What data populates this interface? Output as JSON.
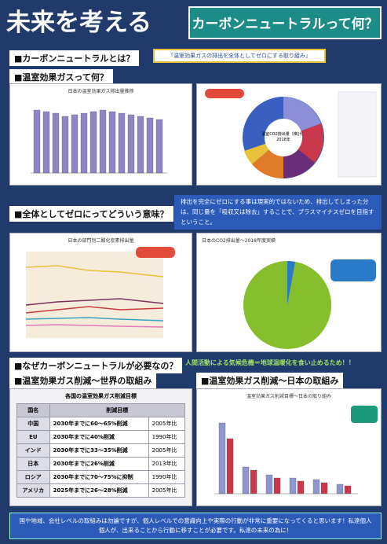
{
  "header": {
    "title_left": "未来を考える",
    "title_right": "カーボンニュートラルって何？"
  },
  "what_is": {
    "heading": "■カーボンニュートラルとは？",
    "answer": "「温室効果ガスの排出を全体としてゼロにする取り組み」"
  },
  "ghg": {
    "heading": "■温室効果ガスって何？",
    "chart_left_title": "日本の温室効果ガス排出量推移",
    "chart_right_title": "温室CO2排出量（推計） 2018年"
  },
  "net_zero": {
    "heading": "■全体としてゼロにってどういう意味？",
    "explanation": "排出を完全にゼロにする事は現実的ではないため、排出してしまった分は、同じ量を「吸収又は除去」することで、プラスマイナスゼロを目指すということ。",
    "chart_left_title": "日本の部門別二酸化炭素排出量",
    "chart_right_title": "日本のCO2排出量～2018年度実績"
  },
  "why": {
    "heading": "■なぜカーボンニュートラルが必要なの？",
    "answer": "人間活動による気候危機＝地球温暖化を食い止めるため！！"
  },
  "world": {
    "heading": "■温室効果ガス削減～世界の取組み",
    "table": {
      "title": "各国の温室効果ガス削減目標",
      "header": [
        "国名",
        "削減目標"
      ],
      "rows": [
        [
          "中国",
          "2030年までに60～65%削減",
          "2005年比"
        ],
        [
          "EU",
          "2030年までに40%削減",
          "1990年比"
        ],
        [
          "インド",
          "2030年までに33～35%削減",
          "2005年比"
        ],
        [
          "日本",
          "2030年までに26%削減",
          "2013年比"
        ],
        [
          "ロシア",
          "2030年までに70～75%に抑制",
          "1990年比"
        ],
        [
          "アメリカ",
          "2025年までに26～28%削減",
          "2005年比"
        ]
      ]
    }
  },
  "japan": {
    "heading": "■温室効果ガス削減～日本の取組み",
    "chart_title": "温室効果ガス削減目標～日本の取り組み"
  },
  "footer": {
    "message": "国や地域、会社レベルの取組みは勿論ですが、個人レベルでの意識向上や実際の行動が非常に重要になってくると思います！私達個人個人が、出来ることから行動に移すことが必要です。私達の未来の為に！"
  }
}
